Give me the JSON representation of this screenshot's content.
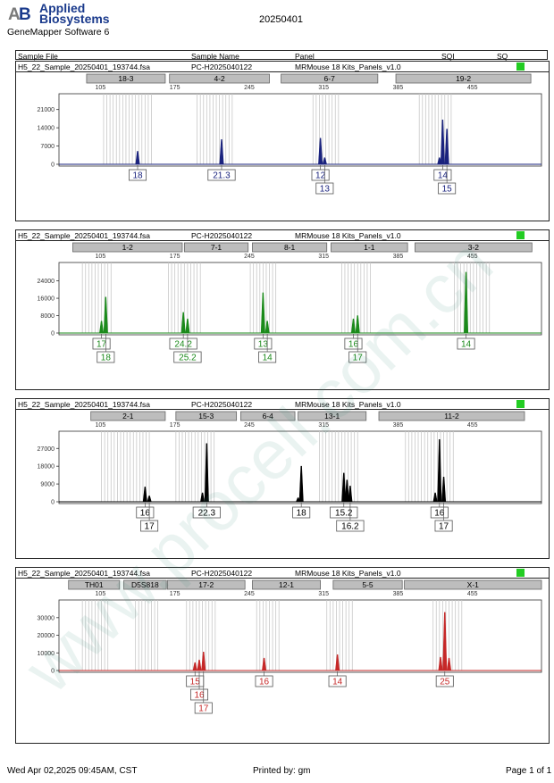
{
  "header": {
    "brand_line1": "Applied",
    "brand_line2": "Biosystems",
    "software": "GeneMapper Software 6",
    "run_date": "20250401"
  },
  "columns": {
    "sample_file": "Sample File",
    "sample_name": "Sample Name",
    "panel": "Panel",
    "sqi": "SQI",
    "sq": "SQ"
  },
  "sample": {
    "file": "H5_22_Sample_20250401_193744.fsa",
    "name": "PC-H2025040122",
    "panel": "MRMouse 18 Kits_Panels_v1.0",
    "sq_color": "#22cc22"
  },
  "footer": {
    "timestamp": "Wed Apr 02,2025 09:45AM, CST",
    "printed_by": "Printed by: gm",
    "page": "Page 1 of 1"
  },
  "watermark": "www.procell.com.cn",
  "chart_data": [
    {
      "type": "line",
      "color": "#1a237e",
      "x_ticks": [
        105,
        175,
        245,
        315,
        385,
        455
      ],
      "xlim": [
        66,
        520
      ],
      "y_ticks": [
        0,
        7000,
        14000,
        21000
      ],
      "ylim": [
        0,
        25000
      ],
      "markers": [
        {
          "label": "18-3",
          "start": 92,
          "end": 166
        },
        {
          "label": "4-2",
          "start": 170,
          "end": 264
        },
        {
          "label": "6-7",
          "start": 275,
          "end": 366
        },
        {
          "label": "19-2",
          "start": 383,
          "end": 510
        }
      ],
      "peaks": [
        {
          "x": 140,
          "y": 5000
        },
        {
          "x": 219,
          "y": 9500
        },
        {
          "x": 312,
          "y": 10000
        },
        {
          "x": 316,
          "y": 2500
        },
        {
          "x": 424,
          "y": 2500
        },
        {
          "x": 427,
          "y": 17000
        },
        {
          "x": 431,
          "y": 13500
        }
      ],
      "bins": [
        108,
        111,
        114,
        117,
        120,
        123,
        126,
        129,
        132,
        135,
        138,
        141,
        144,
        147,
        150,
        153,
        196,
        199,
        202,
        205,
        208,
        211,
        214,
        217,
        220,
        223,
        226,
        229,
        305,
        308,
        311,
        314,
        317,
        320,
        323,
        326,
        329,
        405,
        408,
        411,
        414,
        417,
        420,
        423,
        426,
        429,
        432,
        435
      ],
      "alleles": [
        {
          "text": "18",
          "x": 140,
          "row": 0
        },
        {
          "text": "21.3",
          "x": 219,
          "row": 0
        },
        {
          "text": "12",
          "x": 312,
          "row": 0
        },
        {
          "text": "13",
          "x": 316,
          "row": 1
        },
        {
          "text": "14",
          "x": 427,
          "row": 0
        },
        {
          "text": "15",
          "x": 431,
          "row": 1
        }
      ]
    },
    {
      "type": "line",
      "color": "#1b8a1b",
      "x_ticks": [
        105,
        175,
        245,
        315,
        385,
        455
      ],
      "xlim": [
        66,
        520
      ],
      "y_ticks": [
        0,
        8000,
        16000,
        24000
      ],
      "ylim": [
        0,
        30000
      ],
      "markers": [
        {
          "label": "1-2",
          "start": 79,
          "end": 182
        },
        {
          "label": "7-1",
          "start": 184,
          "end": 244
        },
        {
          "label": "8-1",
          "start": 248,
          "end": 318
        },
        {
          "label": "1-1",
          "start": 322,
          "end": 394
        },
        {
          "label": "3-2",
          "start": 401,
          "end": 511
        }
      ],
      "peaks": [
        {
          "x": 106,
          "y": 5500
        },
        {
          "x": 110,
          "y": 16500
        },
        {
          "x": 183,
          "y": 9500
        },
        {
          "x": 187,
          "y": 6500
        },
        {
          "x": 258,
          "y": 18500
        },
        {
          "x": 262,
          "y": 5500
        },
        {
          "x": 343,
          "y": 6500
        },
        {
          "x": 347,
          "y": 8000
        },
        {
          "x": 449,
          "y": 28000
        }
      ],
      "bins": [
        88,
        91,
        94,
        97,
        100,
        103,
        106,
        109,
        112,
        115,
        169,
        172,
        175,
        178,
        181,
        184,
        187,
        190,
        193,
        196,
        199,
        246,
        249,
        252,
        255,
        258,
        261,
        264,
        267,
        270,
        332,
        335,
        338,
        341,
        344,
        347,
        350,
        353,
        356,
        359,
        438,
        441,
        444,
        447,
        450,
        453,
        456,
        459,
        462,
        465,
        468,
        471
      ],
      "alleles": [
        {
          "text": "17",
          "x": 106,
          "row": 0
        },
        {
          "text": "18",
          "x": 110,
          "row": 1
        },
        {
          "text": "24.2",
          "x": 183,
          "row": 0
        },
        {
          "text": "25.2",
          "x": 187,
          "row": 1
        },
        {
          "text": "13",
          "x": 258,
          "row": 0
        },
        {
          "text": "14",
          "x": 262,
          "row": 1
        },
        {
          "text": "16",
          "x": 343,
          "row": 0
        },
        {
          "text": "17",
          "x": 347,
          "row": 1
        },
        {
          "text": "14",
          "x": 449,
          "row": 0
        }
      ]
    },
    {
      "type": "line",
      "color": "#000000",
      "x_ticks": [
        105,
        175,
        245,
        315,
        385,
        455
      ],
      "xlim": [
        66,
        520
      ],
      "y_ticks": [
        0,
        9000,
        18000,
        27000
      ],
      "ylim": [
        0,
        33000
      ],
      "markers": [
        {
          "label": "2-1",
          "start": 96,
          "end": 166
        },
        {
          "label": "15-3",
          "start": 176,
          "end": 233
        },
        {
          "label": "6-4",
          "start": 237,
          "end": 288
        },
        {
          "label": "13-1",
          "start": 291,
          "end": 355
        },
        {
          "label": "11-2",
          "start": 367,
          "end": 504
        }
      ],
      "peaks": [
        {
          "x": 147,
          "y": 7500
        },
        {
          "x": 151,
          "y": 3000
        },
        {
          "x": 201,
          "y": 4500
        },
        {
          "x": 205,
          "y": 29500
        },
        {
          "x": 291,
          "y": 2000
        },
        {
          "x": 294,
          "y": 18000
        },
        {
          "x": 334,
          "y": 14500
        },
        {
          "x": 337,
          "y": 11000
        },
        {
          "x": 340,
          "y": 8000
        },
        {
          "x": 420,
          "y": 4500
        },
        {
          "x": 424,
          "y": 31500
        },
        {
          "x": 428,
          "y": 12500
        }
      ],
      "bins": [
        106,
        109,
        112,
        115,
        118,
        121,
        124,
        127,
        130,
        133,
        136,
        139,
        142,
        145,
        148,
        151,
        176,
        179,
        182,
        185,
        188,
        191,
        194,
        197,
        200,
        203,
        206,
        209,
        212,
        311,
        314,
        317,
        320,
        323,
        326,
        329,
        332,
        335,
        338,
        341,
        344,
        347,
        392,
        395,
        398,
        401,
        404,
        407,
        410,
        413,
        416,
        419,
        422,
        425,
        428,
        431,
        434,
        437
      ],
      "alleles": [
        {
          "text": "16",
          "x": 147,
          "row": 0
        },
        {
          "text": "17",
          "x": 151,
          "row": 1
        },
        {
          "text": "22.3",
          "x": 205,
          "row": 0
        },
        {
          "text": "18",
          "x": 294,
          "row": 0
        },
        {
          "text": "15.2",
          "x": 334,
          "row": 0
        },
        {
          "text": "16.2",
          "x": 340,
          "row": 1
        },
        {
          "text": "16",
          "x": 424,
          "row": 0
        },
        {
          "text": "17",
          "x": 428,
          "row": 1
        }
      ]
    },
    {
      "type": "line",
      "color": "#c62828",
      "x_ticks": [
        105,
        175,
        245,
        315,
        385,
        455
      ],
      "xlim": [
        66,
        520
      ],
      "y_ticks": [
        0,
        10000,
        20000,
        30000
      ],
      "ylim": [
        0,
        37000
      ],
      "markers": [
        {
          "label": "TH01",
          "start": 75,
          "end": 123
        },
        {
          "label": "D5S818",
          "start": 127,
          "end": 167
        },
        {
          "label": "17-2",
          "start": 168,
          "end": 241
        },
        {
          "label": "12-1",
          "start": 248,
          "end": 312
        },
        {
          "label": "5-5",
          "start": 324,
          "end": 389
        },
        {
          "label": "X-1",
          "start": 391,
          "end": 520
        }
      ],
      "peaks": [
        {
          "x": 194,
          "y": 4500
        },
        {
          "x": 198,
          "y": 6000
        },
        {
          "x": 202,
          "y": 10500
        },
        {
          "x": 259,
          "y": 7000
        },
        {
          "x": 328,
          "y": 9000
        },
        {
          "x": 425,
          "y": 7500
        },
        {
          "x": 429,
          "y": 33000
        },
        {
          "x": 433,
          "y": 7000
        }
      ],
      "bins": [
        88,
        91,
        94,
        97,
        100,
        103,
        106,
        109,
        112,
        138,
        141,
        144,
        147,
        150,
        153,
        156,
        159,
        186,
        189,
        192,
        195,
        198,
        201,
        204,
        207,
        210,
        213,
        252,
        255,
        258,
        261,
        264,
        267,
        270,
        273,
        318,
        321,
        324,
        327,
        330,
        333,
        336,
        339,
        342,
        418,
        421,
        424,
        427,
        430,
        433,
        436,
        439,
        442,
        445
      ],
      "alleles": [
        {
          "text": "15",
          "x": 194,
          "row": 0
        },
        {
          "text": "16",
          "x": 198,
          "row": 1
        },
        {
          "text": "17",
          "x": 202,
          "row": 2
        },
        {
          "text": "16",
          "x": 259,
          "row": 0
        },
        {
          "text": "14",
          "x": 328,
          "row": 0
        },
        {
          "text": "25",
          "x": 429,
          "row": 0
        }
      ]
    }
  ]
}
